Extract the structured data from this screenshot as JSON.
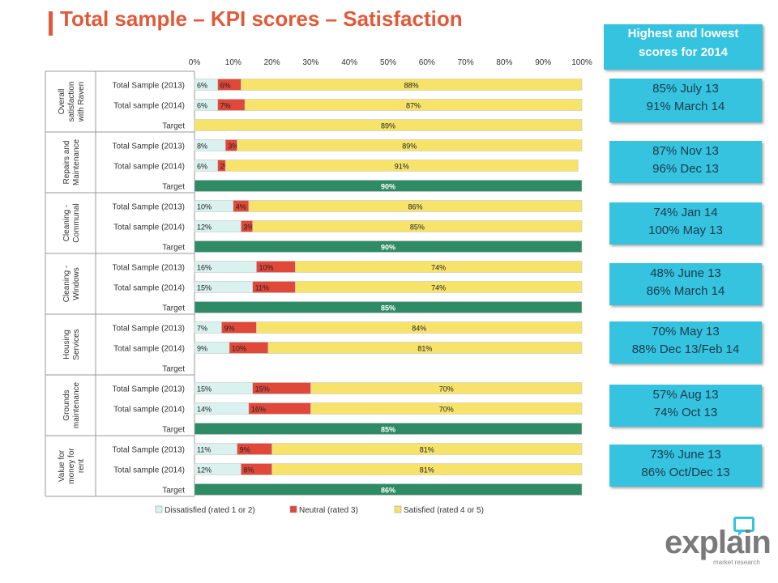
{
  "page": {
    "title": "Total sample – KPI scores – Satisfaction"
  },
  "side": {
    "header_line1": "Highest and lowest",
    "header_line2": "scores for 2014",
    "boxes": [
      {
        "line1": "85% July 13",
        "line2": "91% March 14"
      },
      {
        "line1": "87% Nov 13",
        "line2": "96% Dec 13"
      },
      {
        "line1": "74% Jan 14",
        "line2": "100% May 13"
      },
      {
        "line1": "48% June 13",
        "line2": "86% March 14"
      },
      {
        "line1": "70% May 13",
        "line2": "88% Dec 13/Feb 14"
      },
      {
        "line1": "57% Aug 13",
        "line2": "74% Oct 13"
      },
      {
        "line1": "73% June 13",
        "line2": "86% Oct/Dec 13"
      }
    ]
  },
  "logo": {
    "text": "explain",
    "sub": "market research"
  },
  "colors": {
    "dissatisfied": "#d9f2f0",
    "neutral": "#e0483a",
    "satisfied": "#f7e36a",
    "target": "#2e8b66",
    "title": "#e05a3a",
    "accent": "#35c3e0"
  },
  "chart_data": {
    "type": "bar",
    "orientation": "horizontal",
    "stacked": true,
    "xlim": [
      0,
      100
    ],
    "x_ticks": [
      "0%",
      "10%",
      "20%",
      "30%",
      "40%",
      "50%",
      "60%",
      "70%",
      "80%",
      "90%",
      "100%"
    ],
    "legend": [
      "Dissatisfied (rated 1 or 2)",
      "Neutral (rated 3)",
      "Satisfied (rated 4 or 5)"
    ],
    "legend_position": "bottom",
    "groups": [
      {
        "label": "Overall satisfaction with Raven",
        "label_lines": [
          "Overall",
          "satisfaction",
          "with Raven"
        ],
        "rows": [
          {
            "label": "Total Sample (2013)",
            "values": [
              6,
              6,
              88
            ]
          },
          {
            "label": "Total sample (2014)",
            "values": [
              6,
              7,
              87
            ]
          },
          {
            "label": "Target",
            "target": 89,
            "target_style": "yellow"
          }
        ]
      },
      {
        "label": "Repairs and Maintenance",
        "label_lines": [
          "Repairs and",
          "Maintenance"
        ],
        "rows": [
          {
            "label": "Total Sample (2013)",
            "values": [
              8,
              3,
              89
            ]
          },
          {
            "label": "Total sample (2014)",
            "values": [
              6,
              2,
              91
            ]
          },
          {
            "label": "Target",
            "target": 90,
            "target_style": "green"
          }
        ]
      },
      {
        "label": "Cleaning - Communal",
        "label_lines": [
          "Cleaning -",
          "Communal"
        ],
        "rows": [
          {
            "label": "Total Sample (2013)",
            "values": [
              10,
              4,
              86
            ]
          },
          {
            "label": "Total sample (2014)",
            "values": [
              12,
              3,
              85
            ]
          },
          {
            "label": "Target",
            "target": 90,
            "target_style": "green"
          }
        ]
      },
      {
        "label": "Cleaning - Windows",
        "label_lines": [
          "Cleaning -",
          "Windows"
        ],
        "rows": [
          {
            "label": "Total Sample (2013)",
            "values": [
              16,
              10,
              74
            ]
          },
          {
            "label": "Total sample (2014)",
            "values": [
              15,
              11,
              74
            ]
          },
          {
            "label": "Target",
            "target": 85,
            "target_style": "green"
          }
        ]
      },
      {
        "label": "Housing Services",
        "label_lines": [
          "Housing",
          "Services"
        ],
        "rows": [
          {
            "label": "Total Sample (2013)",
            "values": [
              7,
              9,
              84
            ]
          },
          {
            "label": "Total sample (2014)",
            "values": [
              9,
              10,
              81
            ]
          },
          {
            "label": "Target",
            "target": null
          }
        ]
      },
      {
        "label": "Grounds maintenance",
        "label_lines": [
          "Grounds",
          "maintenance"
        ],
        "rows": [
          {
            "label": "Total Sample (2013)",
            "values": [
              15,
              15,
              70
            ]
          },
          {
            "label": "Total sample (2014)",
            "values": [
              14,
              16,
              70
            ]
          },
          {
            "label": "Target",
            "target": 85,
            "target_style": "green"
          }
        ]
      },
      {
        "label": "Value for money for rent",
        "label_lines": [
          "Value for",
          "money for",
          "rent"
        ],
        "rows": [
          {
            "label": "Total Sample (2013)",
            "values": [
              11,
              9,
              81
            ]
          },
          {
            "label": "Total sample (2014)",
            "values": [
              12,
              8,
              81
            ]
          },
          {
            "label": "Target",
            "target": 86,
            "target_style": "green"
          }
        ]
      }
    ]
  }
}
